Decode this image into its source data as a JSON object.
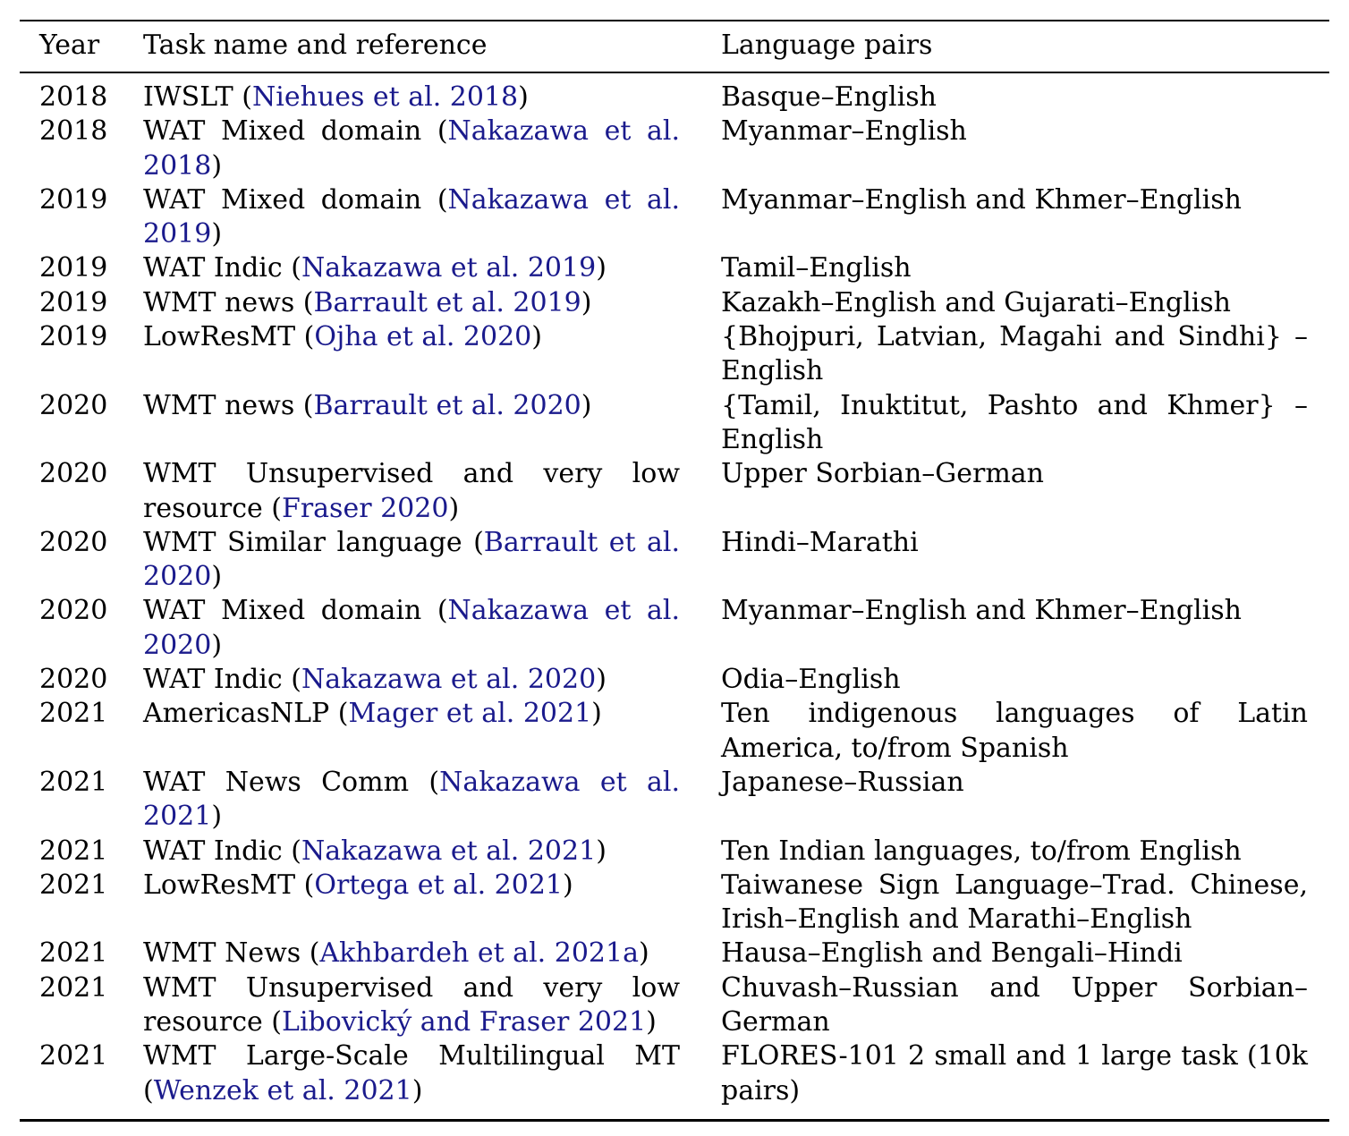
{
  "table": {
    "headers": {
      "year": "Year",
      "task": "Task name and reference",
      "lang": "Language pairs"
    },
    "rows": [
      {
        "year": "2018",
        "task_a": "IWSLT (",
        "cite": "Niehues et al. 2018",
        "task_b": ")",
        "lang": "Basque–English"
      },
      {
        "year": "2018",
        "task_a": "WAT Mixed domain (",
        "cite": "Nakazawa et al. 2018",
        "task_b": ")",
        "lang": "Myanmar–English"
      },
      {
        "year": "2019",
        "task_a": "WAT Mixed domain (",
        "cite": "Nakazawa et al. 2019",
        "task_b": ")",
        "lang": "Myanmar–English and Khmer–English"
      },
      {
        "year": "2019",
        "task_a": "WAT Indic (",
        "cite": "Nakazawa et al. 2019",
        "task_b": ")",
        "lang": "Tamil–English"
      },
      {
        "year": "2019",
        "task_a": "WMT news (",
        "cite": "Barrault et al. 2019",
        "task_b": ")",
        "lang": "Kazakh–English and Gujarati–English"
      },
      {
        "year": "2019",
        "task_a": "LowResMT (",
        "cite": "Ojha et al. 2020",
        "task_b": ")",
        "lang": "{Bhojpuri, Latvian, Magahi and Sindhi} – English"
      },
      {
        "year": "2020",
        "task_a": "WMT news (",
        "cite": "Barrault et al. 2020",
        "task_b": ")",
        "lang": "{Tamil, Inuktitut, Pashto and Khmer} – English"
      },
      {
        "year": "2020",
        "task_a": "WMT Unsupervised and very low resource (",
        "cite": "Fraser 2020",
        "task_b": ")",
        "lang": "Upper Sorbian–German"
      },
      {
        "year": "2020",
        "task_a": "WMT Similar language (",
        "cite": "Barrault et al. 2020",
        "task_b": ")",
        "lang": "Hindi–Marathi"
      },
      {
        "year": "2020",
        "task_a": "WAT Mixed domain (",
        "cite": "Nakazawa et al. 2020",
        "task_b": ")",
        "lang": "Myanmar–English and Khmer–English"
      },
      {
        "year": "2020",
        "task_a": "WAT Indic (",
        "cite": "Nakazawa et al. 2020",
        "task_b": ")",
        "lang": "Odia–English"
      },
      {
        "year": "2021",
        "task_a": "AmericasNLP (",
        "cite": "Mager et al. 2021",
        "task_b": ")",
        "lang": "Ten indigenous languages of Latin America, to/from Spanish"
      },
      {
        "year": "2021",
        "task_a": "WAT News Comm (",
        "cite": "Nakazawa et al. 2021",
        "task_b": ")",
        "lang": "Japanese–Russian"
      },
      {
        "year": "2021",
        "task_a": "WAT Indic (",
        "cite": "Nakazawa et al. 2021",
        "task_b": ")",
        "lang": "Ten Indian languages, to/from English"
      },
      {
        "year": "2021",
        "task_a": "LowResMT (",
        "cite": "Ortega et al. 2021",
        "task_b": ")",
        "lang": "Taiwanese Sign Language–Trad. Chinese, Irish–English and Marathi–English"
      },
      {
        "year": "2021",
        "task_a": "WMT News (",
        "cite": "Akhbardeh et al. 2021a",
        "task_b": ")",
        "lang": "Hausa–English and Bengali–Hindi"
      },
      {
        "year": "2021",
        "task_a": "WMT Unsupervised and very low resource (",
        "cite": "Libovický and Fraser 2021",
        "task_b": ")",
        "lang": "Chuvash–Russian and Upper Sorbian–German"
      },
      {
        "year": "2021",
        "task_a": "WMT Large-Scale Multilingual MT (",
        "cite": "Wenzek et al. 2021",
        "task_b": ")",
        "lang": "FLORES-101 2 small and 1 large task (10k pairs)"
      }
    ]
  }
}
